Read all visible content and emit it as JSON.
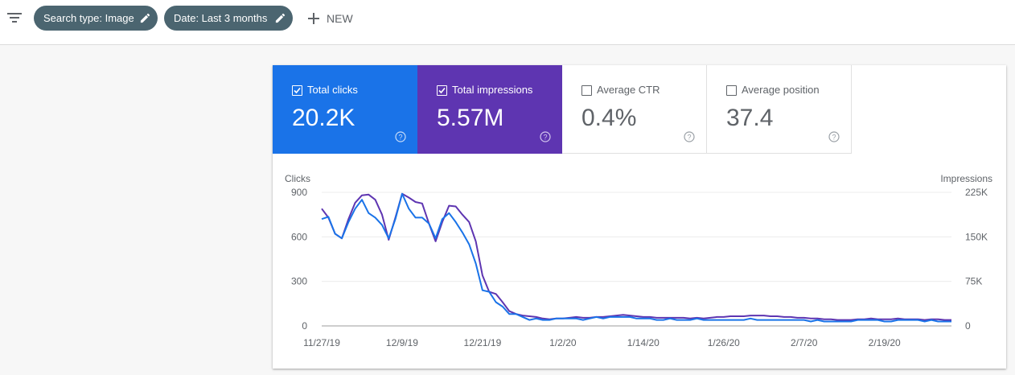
{
  "toolbar": {
    "filter_icon": "filter-list-icon",
    "chips": [
      {
        "label": "Search type: Image",
        "icon": "pencil-icon"
      },
      {
        "label": "Date: Last 3 months",
        "icon": "pencil-icon"
      }
    ],
    "new_label": "NEW",
    "new_icon": "plus-icon"
  },
  "metrics": [
    {
      "label": "Total clicks",
      "value": "20.2K",
      "checked": true,
      "color": "#1a73e8"
    },
    {
      "label": "Total impressions",
      "value": "5.57M",
      "checked": true,
      "color": "#5e35b1"
    },
    {
      "label": "Average CTR",
      "value": "0.4%",
      "checked": false
    },
    {
      "label": "Average position",
      "value": "37.4",
      "checked": false
    }
  ],
  "chart_data": {
    "type": "line",
    "left_axis_title": "Clicks",
    "right_axis_title": "Impressions",
    "left_ticks": [
      "0",
      "300",
      "600",
      "900"
    ],
    "right_ticks": [
      "0",
      "75K",
      "150K",
      "225K"
    ],
    "left_range": [
      0,
      900
    ],
    "right_range": [
      0,
      225000
    ],
    "x_ticks": [
      "11/27/19",
      "12/9/19",
      "12/21/19",
      "1/2/20",
      "1/14/20",
      "1/26/20",
      "2/7/20",
      "2/19/20"
    ],
    "grid": true,
    "series": [
      {
        "axis": "left",
        "color": "#1a73e8",
        "values": [
          720,
          735,
          620,
          590,
          700,
          790,
          850,
          760,
          730,
          680,
          590,
          720,
          890,
          790,
          730,
          730,
          690,
          590,
          720,
          760,
          700,
          630,
          550,
          420,
          240,
          230,
          160,
          130,
          80,
          80,
          60,
          40,
          50,
          40,
          40,
          50,
          50,
          50,
          50,
          40,
          50,
          60,
          50,
          60,
          60,
          60,
          60,
          50,
          50,
          50,
          40,
          40,
          50,
          40,
          40,
          40,
          50,
          40,
          40,
          40,
          40,
          40,
          40,
          40,
          50,
          40,
          40,
          40,
          40,
          40,
          40,
          40,
          40,
          30,
          40,
          30,
          30,
          30,
          30,
          30,
          40,
          40,
          40,
          40,
          30,
          30,
          40,
          40,
          40,
          40,
          30,
          40,
          30,
          30,
          30
        ]
      },
      {
        "axis": "right",
        "color": "#5e35b1",
        "values": [
          197500,
          182500,
          155000,
          147500,
          180000,
          207500,
          220000,
          221250,
          212500,
          187500,
          145000,
          182500,
          222500,
          216250,
          208750,
          206250,
          172500,
          142500,
          175000,
          202500,
          201250,
          187500,
          175000,
          142500,
          85000,
          57500,
          53750,
          40000,
          25000,
          20000,
          17500,
          16250,
          15000,
          12500,
          11250,
          12500,
          12500,
          13750,
          15000,
          13750,
          13750,
          15000,
          15000,
          16250,
          17500,
          18750,
          17500,
          16250,
          15000,
          15000,
          13750,
          13750,
          13750,
          13750,
          13750,
          12500,
          13750,
          12500,
          13750,
          15000,
          15000,
          16250,
          16250,
          16250,
          17500,
          17500,
          17500,
          16250,
          16250,
          15000,
          15000,
          13750,
          13750,
          12500,
          12500,
          11250,
          11250,
          10000,
          10000,
          10000,
          11250,
          11250,
          12500,
          11250,
          11250,
          11250,
          12500,
          11250,
          11250,
          11250,
          10000,
          11250,
          11250,
          10000,
          10000
        ]
      }
    ]
  }
}
